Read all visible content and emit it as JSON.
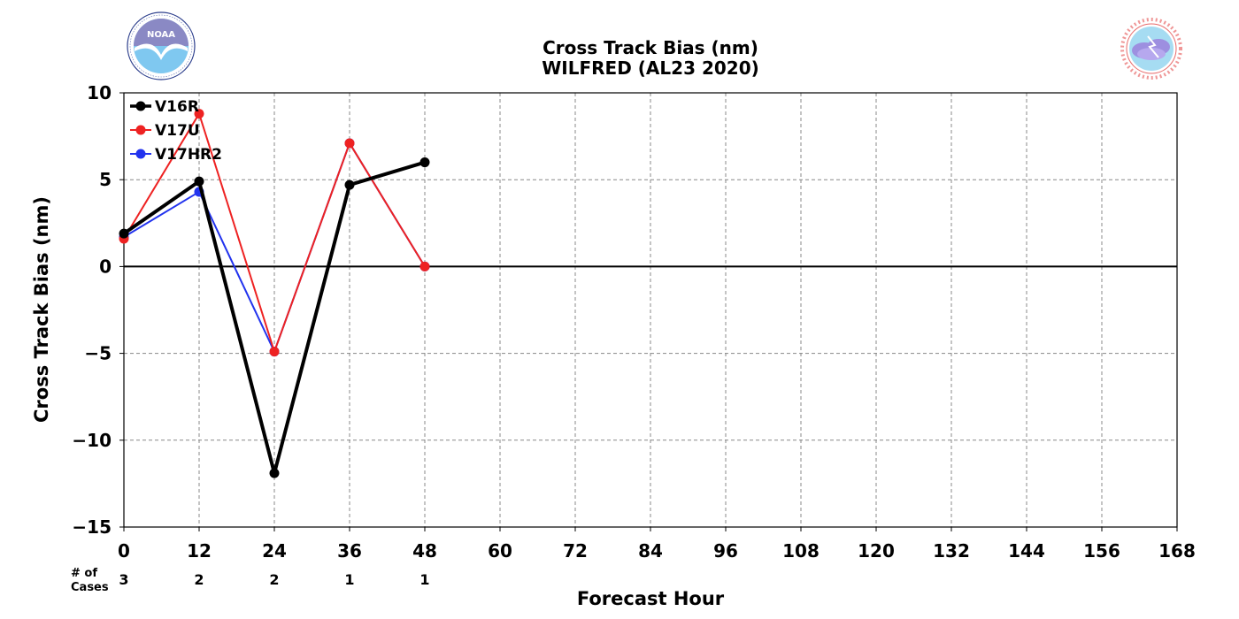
{
  "title_line1": "Cross Track Bias (nm)",
  "title_line2": "WILFRED (AL23 2020)",
  "logos": {
    "left": {
      "text": "NOAA",
      "ring_text": "NATIONAL OCEANIC AND ATMOSPHERIC ADMINISTRATION · U.S. DEPARTMENT OF COMMERCE"
    },
    "right": {
      "ring_text": "NATIONAL WEATHER SERVICE"
    }
  },
  "cases_label_line1": "# of",
  "cases_label_line2": "Cases",
  "colors": {
    "V16R": "#000000",
    "V17U": "#ee2222",
    "V17HR2": "#2233ee",
    "grid": "#888888"
  },
  "chart_data": {
    "type": "line",
    "title": "Cross Track Bias (nm)\nWILFRED (AL23 2020)",
    "xlabel": "Forecast Hour",
    "ylabel": "Cross Track Bias (nm)",
    "xlim": [
      0,
      168
    ],
    "ylim": [
      -15,
      10
    ],
    "xticks": [
      0,
      12,
      24,
      36,
      48,
      60,
      72,
      84,
      96,
      108,
      120,
      132,
      144,
      156,
      168
    ],
    "yticks": [
      -15,
      -10,
      -5,
      0,
      5,
      10
    ],
    "ytick_labels": [
      "−15",
      "−10",
      "−5",
      "0",
      "5",
      "10"
    ],
    "grid": true,
    "legend_position": "top-left",
    "x": [
      0,
      12,
      24,
      36,
      48
    ],
    "series": [
      {
        "name": "V16R",
        "color": "#000000",
        "width": 4,
        "values": [
          1.9,
          4.9,
          -11.9,
          4.7,
          6.0
        ]
      },
      {
        "name": "V17U",
        "color": "#ee2222",
        "width": 2,
        "values": [
          1.6,
          8.8,
          -4.9,
          7.1,
          0.0
        ]
      },
      {
        "name": "V17HR2",
        "color": "#2233ee",
        "width": 2,
        "values": [
          1.7,
          4.3,
          -4.9,
          7.1,
          0.0
        ]
      }
    ],
    "cases": {
      "x": [
        0,
        12,
        24,
        36,
        48
      ],
      "counts": [
        "3",
        "2",
        "2",
        "1",
        "1"
      ]
    }
  }
}
